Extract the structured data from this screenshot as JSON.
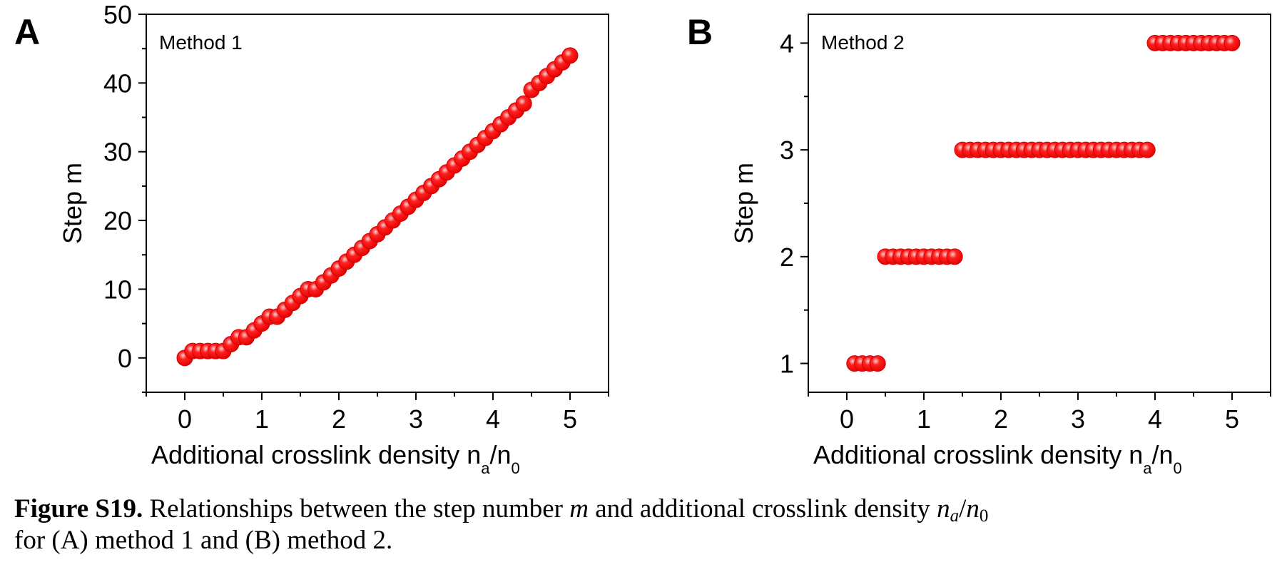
{
  "colors": {
    "marker": "#ff0000",
    "marker_edge": "#d40000",
    "axis": "#000000"
  },
  "panels": {
    "a": {
      "letter": "A",
      "method": "Method 1",
      "ylabel": "Step m"
    },
    "b": {
      "letter": "B",
      "method": "Method 2",
      "ylabel": "Step m"
    }
  },
  "xlabel": {
    "main": "Additional crosslink density n",
    "sub_a": "a",
    "slash": "/n",
    "sub_0": "0"
  },
  "caption": {
    "label": "Figure S19.",
    "text1": " Relationships between the step number ",
    "m": "m",
    "text2": " and additional crosslink density ",
    "na": "n",
    "na_sub": "a",
    "slash": "/",
    "n0": "n",
    "n0_sub": "0",
    "line2": "for (A) method 1 and (B) method 2."
  },
  "chart_data": [
    {
      "type": "scatter",
      "panel": "A",
      "xlim": [
        -0.5,
        5.5
      ],
      "ylim": [
        -5,
        50
      ],
      "xticks": [
        "0",
        "1",
        "2",
        "3",
        "4",
        "5"
      ],
      "yticks": [
        "0",
        "10",
        "20",
        "30",
        "40",
        "50"
      ],
      "grid": false,
      "series": [
        {
          "x": [
            0,
            0.1,
            0.2,
            0.3,
            0.4,
            0.5,
            0.6,
            0.7,
            0.8,
            0.9,
            1.0,
            1.1,
            1.2,
            1.3,
            1.4,
            1.5,
            1.6,
            1.7,
            1.8,
            1.9,
            2.0,
            2.1,
            2.2,
            2.3,
            2.4,
            2.5,
            2.6,
            2.7,
            2.8,
            2.9,
            3.0,
            3.1,
            3.2,
            3.3,
            3.4,
            3.5,
            3.6,
            3.7,
            3.8,
            3.9,
            4.0,
            4.1,
            4.2,
            4.3,
            4.4,
            4.5,
            4.6,
            4.7,
            4.8,
            4.9,
            5.0
          ],
          "y": [
            0,
            1,
            1,
            1,
            1,
            1,
            2,
            3,
            3,
            4,
            5,
            6,
            6,
            7,
            8,
            9,
            10,
            10,
            11,
            12,
            13,
            14,
            15,
            16,
            17,
            18,
            19,
            20,
            21,
            22,
            23,
            24,
            25,
            26,
            27,
            28,
            29,
            30,
            31,
            32,
            33,
            34,
            35,
            36,
            37,
            39,
            40,
            41,
            42,
            43,
            44
          ]
        }
      ]
    },
    {
      "type": "scatter",
      "panel": "B",
      "xlim": [
        -0.5,
        5.5
      ],
      "ylim": [
        0.73,
        4.27
      ],
      "xticks": [
        "0",
        "1",
        "2",
        "3",
        "4",
        "5"
      ],
      "yticks": [
        "1",
        "2",
        "3",
        "4"
      ],
      "grid": false,
      "series": [
        {
          "x": [
            0.1,
            0.2,
            0.3,
            0.4,
            0.5,
            0.6,
            0.7,
            0.8,
            0.9,
            1.0,
            1.1,
            1.2,
            1.3,
            1.4,
            1.5,
            1.6,
            1.7,
            1.8,
            1.9,
            2.0,
            2.1,
            2.2,
            2.3,
            2.4,
            2.5,
            2.6,
            2.7,
            2.8,
            2.9,
            3.0,
            3.1,
            3.2,
            3.3,
            3.4,
            3.5,
            3.6,
            3.7,
            3.8,
            3.9,
            4.0,
            4.1,
            4.2,
            4.3,
            4.4,
            4.5,
            4.6,
            4.7,
            4.8,
            4.9,
            5.0
          ],
          "y": [
            1,
            1,
            1,
            1,
            2,
            2,
            2,
            2,
            2,
            2,
            2,
            2,
            2,
            2,
            3,
            3,
            3,
            3,
            3,
            3,
            3,
            3,
            3,
            3,
            3,
            3,
            3,
            3,
            3,
            3,
            3,
            3,
            3,
            3,
            3,
            3,
            3,
            3,
            3,
            4,
            4,
            4,
            4,
            4,
            4,
            4,
            4,
            4,
            4,
            4
          ]
        }
      ]
    }
  ]
}
